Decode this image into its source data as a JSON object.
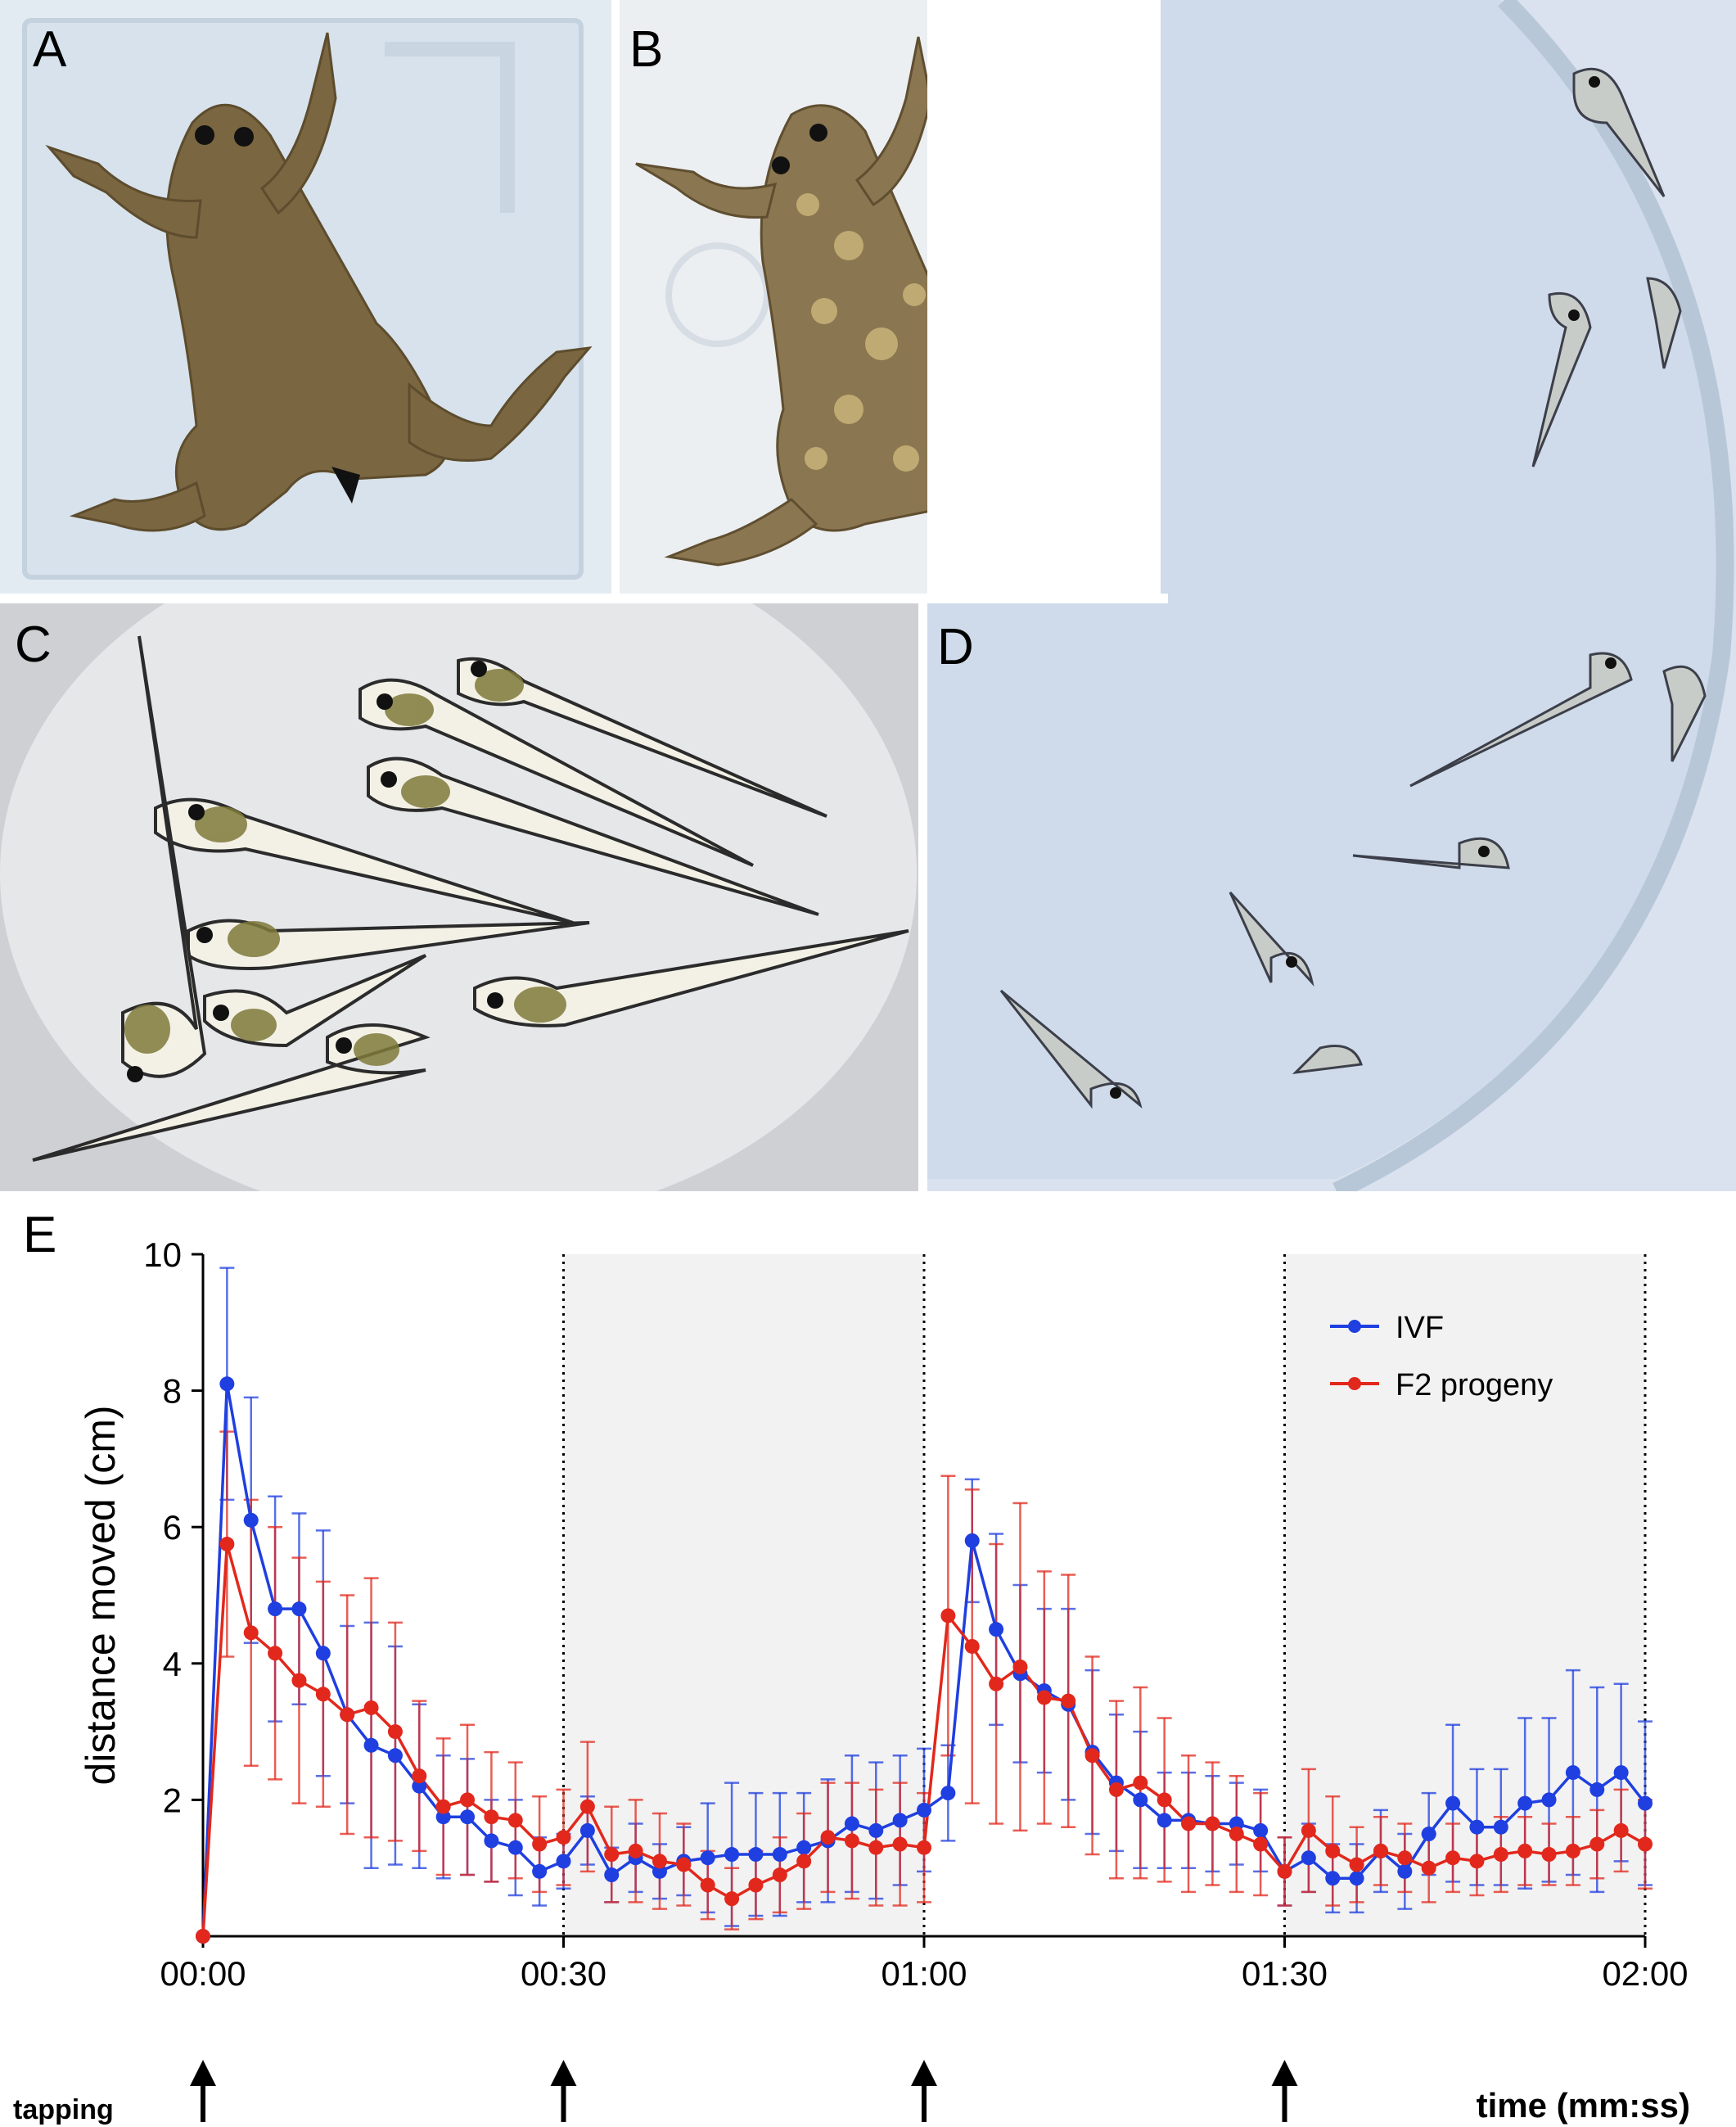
{
  "panels": {
    "a_label": "A",
    "b_label": "B",
    "c_label": "C",
    "d_label": "D",
    "e_label": "E"
  },
  "colors": {
    "ivf": "#1f3fe0",
    "f2": "#e2281c",
    "shade": "#f2f2f2"
  },
  "chart_data": {
    "type": "line",
    "xlabel": "time (mm:ss)",
    "ylabel": "distance moved (cm)",
    "xlim": [
      0,
      120
    ],
    "ylim": [
      0,
      10
    ],
    "x_ticks": [
      0,
      30,
      60,
      90,
      120
    ],
    "x_tick_labels": [
      "00:00",
      "00:30",
      "01:00",
      "01:30",
      "02:00"
    ],
    "y_ticks": [
      2,
      4,
      6,
      8,
      10
    ],
    "y_tick_labels": [
      "2",
      "4",
      "6",
      "8",
      "10"
    ],
    "tapping_label": "tapping",
    "tap_times": [
      0,
      30,
      60,
      90
    ],
    "dotted_lines": [
      30,
      60,
      90,
      120
    ],
    "shaded_ranges": [
      [
        30,
        60
      ],
      [
        90,
        120
      ]
    ],
    "legend_position": "top-right",
    "x": [
      0,
      2,
      4,
      6,
      8,
      10,
      12,
      14,
      16,
      18,
      20,
      22,
      24,
      26,
      28,
      30,
      32,
      34,
      36,
      38,
      40,
      42,
      44,
      46,
      48,
      50,
      52,
      54,
      56,
      58,
      60,
      62,
      64,
      66,
      68,
      70,
      72,
      74,
      76,
      78,
      80,
      82,
      84,
      86,
      88,
      90,
      92,
      94,
      96,
      98,
      100,
      102,
      104,
      106,
      108,
      110,
      112,
      114,
      116,
      118,
      120
    ],
    "series": [
      {
        "name": "IVF",
        "values": [
          0,
          8.1,
          6.1,
          4.8,
          4.8,
          4.15,
          3.25,
          2.8,
          2.65,
          2.2,
          1.75,
          1.75,
          1.4,
          1.3,
          0.95,
          1.1,
          1.55,
          0.9,
          1.15,
          0.95,
          1.1,
          1.15,
          1.2,
          1.2,
          1.2,
          1.3,
          1.4,
          1.65,
          1.55,
          1.7,
          1.85,
          2.1,
          5.8,
          4.5,
          3.85,
          3.6,
          3.4,
          2.7,
          2.25,
          2.0,
          1.7,
          1.7,
          1.65,
          1.65,
          1.55,
          0.95,
          1.15,
          0.85,
          0.85,
          1.25,
          0.95,
          1.5,
          1.95,
          1.6,
          1.6,
          1.95,
          2.0,
          2.4,
          2.15,
          2.4,
          1.95
        ],
        "err": [
          0,
          1.7,
          1.8,
          1.65,
          1.4,
          1.8,
          1.3,
          1.8,
          1.6,
          1.2,
          0.9,
          0.85,
          0.6,
          0.7,
          0.5,
          0.4,
          0.5,
          0.4,
          0.5,
          0.4,
          0.5,
          0.8,
          1.05,
          0.9,
          0.9,
          0.8,
          0.9,
          1.0,
          1.0,
          0.95,
          0.9,
          0.7,
          0.9,
          1.4,
          1.3,
          1.2,
          1.4,
          1.2,
          1.0,
          1.0,
          0.7,
          0.7,
          0.7,
          0.6,
          0.6,
          0.5,
          0.5,
          0.5,
          0.5,
          0.6,
          0.55,
          0.6,
          1.15,
          0.85,
          0.85,
          1.25,
          1.2,
          1.5,
          1.5,
          1.3,
          1.2
        ]
      },
      {
        "name": "F2 progeny",
        "values": [
          0,
          5.75,
          4.45,
          4.15,
          3.75,
          3.55,
          3.25,
          3.35,
          3.0,
          2.35,
          1.9,
          2.0,
          1.75,
          1.7,
          1.35,
          1.45,
          1.9,
          1.2,
          1.25,
          1.1,
          1.05,
          0.75,
          0.55,
          0.75,
          0.9,
          1.1,
          1.45,
          1.4,
          1.3,
          1.35,
          1.3,
          4.7,
          4.25,
          3.7,
          3.95,
          3.5,
          3.45,
          2.65,
          2.15,
          2.25,
          2.0,
          1.65,
          1.65,
          1.5,
          1.35,
          0.95,
          1.55,
          1.25,
          1.05,
          1.25,
          1.15,
          1.0,
          1.15,
          1.1,
          1.2,
          1.25,
          1.2,
          1.25,
          1.35,
          1.55,
          1.35
        ],
        "err": [
          0,
          1.65,
          1.95,
          1.85,
          1.8,
          1.65,
          1.75,
          1.9,
          1.6,
          1.1,
          1.0,
          1.1,
          0.95,
          0.85,
          0.7,
          0.7,
          0.95,
          0.7,
          0.75,
          0.7,
          0.6,
          0.5,
          0.45,
          0.5,
          0.55,
          0.7,
          0.8,
          0.85,
          0.85,
          0.9,
          0.8,
          2.05,
          2.3,
          2.05,
          2.4,
          1.85,
          1.85,
          1.45,
          1.3,
          1.4,
          1.2,
          1.0,
          0.9,
          0.85,
          0.75,
          0.5,
          0.9,
          0.8,
          0.55,
          0.5,
          0.5,
          0.5,
          0.5,
          0.5,
          0.55,
          0.5,
          0.45,
          0.5,
          0.5,
          0.6,
          0.65
        ]
      }
    ]
  }
}
